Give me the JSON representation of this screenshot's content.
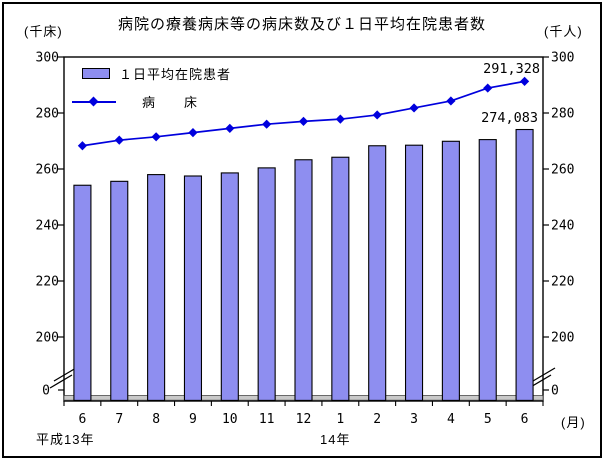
{
  "title": "病院の療養病床等の病床数及び１日平均在院患者数",
  "axis_units": {
    "left": "(千床)",
    "right": "(千人)"
  },
  "legend": {
    "bar_label": "１日平均在院患者",
    "line_label": "病　　床"
  },
  "x_axis": {
    "unit_label": "(月)",
    "era_left": "平成13年",
    "era_right": "14年"
  },
  "colors": {
    "bar_fill": "#8E8EF0",
    "bar_border": "#000000",
    "line": "#0000DD",
    "floor": "#C9C9C9",
    "axis": "#000000",
    "background": "#FFFFFF"
  },
  "chart_data": {
    "type": "combo-bar-line",
    "title": "病院の療養病床等の病床数及び１日平均在院患者数",
    "categories": [
      "6",
      "7",
      "8",
      "9",
      "10",
      "11",
      "12",
      "1",
      "2",
      "3",
      "4",
      "5",
      "6"
    ],
    "category_unit": "(月)",
    "x_group_labels": [
      {
        "label": "平成13年",
        "under_category_index": 0
      },
      {
        "label": "14年",
        "under_category_index": 7
      }
    ],
    "y_ticks": [
      0,
      200,
      220,
      240,
      260,
      280,
      300
    ],
    "axis_break_between": [
      0,
      200
    ],
    "left_axis_label": "(千床)",
    "right_axis_label": "(千人)",
    "grid": false,
    "legend_position": "top-left-inside",
    "series": [
      {
        "name": "１日平均在院患者",
        "type": "bar",
        "axis": "right",
        "unit": "千人",
        "color": "#8E8EF0",
        "values": [
          254.2,
          255.6,
          258.0,
          257.5,
          258.6,
          260.4,
          263.3,
          264.2,
          268.3,
          268.5,
          269.9,
          270.5,
          274.1
        ],
        "last_point_label": "274,083"
      },
      {
        "name": "病　　床",
        "type": "line",
        "axis": "left",
        "unit": "千床",
        "color": "#0000DD",
        "marker": "diamond",
        "values": [
          268.3,
          270.3,
          271.5,
          273.0,
          274.5,
          276.0,
          277.0,
          277.8,
          279.3,
          281.8,
          284.3,
          288.9,
          291.3
        ],
        "last_point_label": "291,328"
      }
    ]
  }
}
